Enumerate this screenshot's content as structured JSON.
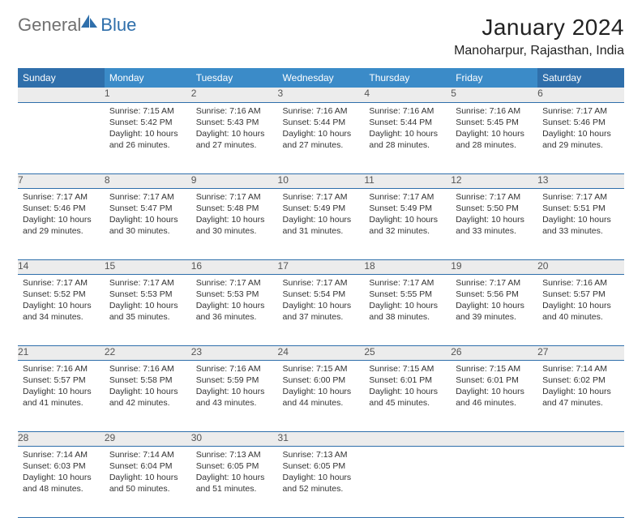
{
  "brand": {
    "part1": "General",
    "part2": "Blue",
    "logo_color": "#2f6fab"
  },
  "title": "January 2024",
  "location": "Manoharpur, Rajasthan, India",
  "colors": {
    "weekday_header_bg": "#3b8bc8",
    "weekend_header_bg": "#2f6fab",
    "header_text": "#ffffff",
    "daynum_bg": "#ececec",
    "rule": "#2f6fab",
    "text": "#333333"
  },
  "day_headers": [
    "Sunday",
    "Monday",
    "Tuesday",
    "Wednesday",
    "Thursday",
    "Friday",
    "Saturday"
  ],
  "weeks": [
    {
      "cells": [
        {
          "num": "",
          "sunrise": "",
          "sunset": "",
          "daylight": ""
        },
        {
          "num": "1",
          "sunrise": "Sunrise: 7:15 AM",
          "sunset": "Sunset: 5:42 PM",
          "daylight": "Daylight: 10 hours and 26 minutes."
        },
        {
          "num": "2",
          "sunrise": "Sunrise: 7:16 AM",
          "sunset": "Sunset: 5:43 PM",
          "daylight": "Daylight: 10 hours and 27 minutes."
        },
        {
          "num": "3",
          "sunrise": "Sunrise: 7:16 AM",
          "sunset": "Sunset: 5:44 PM",
          "daylight": "Daylight: 10 hours and 27 minutes."
        },
        {
          "num": "4",
          "sunrise": "Sunrise: 7:16 AM",
          "sunset": "Sunset: 5:44 PM",
          "daylight": "Daylight: 10 hours and 28 minutes."
        },
        {
          "num": "5",
          "sunrise": "Sunrise: 7:16 AM",
          "sunset": "Sunset: 5:45 PM",
          "daylight": "Daylight: 10 hours and 28 minutes."
        },
        {
          "num": "6",
          "sunrise": "Sunrise: 7:17 AM",
          "sunset": "Sunset: 5:46 PM",
          "daylight": "Daylight: 10 hours and 29 minutes."
        }
      ]
    },
    {
      "cells": [
        {
          "num": "7",
          "sunrise": "Sunrise: 7:17 AM",
          "sunset": "Sunset: 5:46 PM",
          "daylight": "Daylight: 10 hours and 29 minutes."
        },
        {
          "num": "8",
          "sunrise": "Sunrise: 7:17 AM",
          "sunset": "Sunset: 5:47 PM",
          "daylight": "Daylight: 10 hours and 30 minutes."
        },
        {
          "num": "9",
          "sunrise": "Sunrise: 7:17 AM",
          "sunset": "Sunset: 5:48 PM",
          "daylight": "Daylight: 10 hours and 30 minutes."
        },
        {
          "num": "10",
          "sunrise": "Sunrise: 7:17 AM",
          "sunset": "Sunset: 5:49 PM",
          "daylight": "Daylight: 10 hours and 31 minutes."
        },
        {
          "num": "11",
          "sunrise": "Sunrise: 7:17 AM",
          "sunset": "Sunset: 5:49 PM",
          "daylight": "Daylight: 10 hours and 32 minutes."
        },
        {
          "num": "12",
          "sunrise": "Sunrise: 7:17 AM",
          "sunset": "Sunset: 5:50 PM",
          "daylight": "Daylight: 10 hours and 33 minutes."
        },
        {
          "num": "13",
          "sunrise": "Sunrise: 7:17 AM",
          "sunset": "Sunset: 5:51 PM",
          "daylight": "Daylight: 10 hours and 33 minutes."
        }
      ]
    },
    {
      "cells": [
        {
          "num": "14",
          "sunrise": "Sunrise: 7:17 AM",
          "sunset": "Sunset: 5:52 PM",
          "daylight": "Daylight: 10 hours and 34 minutes."
        },
        {
          "num": "15",
          "sunrise": "Sunrise: 7:17 AM",
          "sunset": "Sunset: 5:53 PM",
          "daylight": "Daylight: 10 hours and 35 minutes."
        },
        {
          "num": "16",
          "sunrise": "Sunrise: 7:17 AM",
          "sunset": "Sunset: 5:53 PM",
          "daylight": "Daylight: 10 hours and 36 minutes."
        },
        {
          "num": "17",
          "sunrise": "Sunrise: 7:17 AM",
          "sunset": "Sunset: 5:54 PM",
          "daylight": "Daylight: 10 hours and 37 minutes."
        },
        {
          "num": "18",
          "sunrise": "Sunrise: 7:17 AM",
          "sunset": "Sunset: 5:55 PM",
          "daylight": "Daylight: 10 hours and 38 minutes."
        },
        {
          "num": "19",
          "sunrise": "Sunrise: 7:17 AM",
          "sunset": "Sunset: 5:56 PM",
          "daylight": "Daylight: 10 hours and 39 minutes."
        },
        {
          "num": "20",
          "sunrise": "Sunrise: 7:16 AM",
          "sunset": "Sunset: 5:57 PM",
          "daylight": "Daylight: 10 hours and 40 minutes."
        }
      ]
    },
    {
      "cells": [
        {
          "num": "21",
          "sunrise": "Sunrise: 7:16 AM",
          "sunset": "Sunset: 5:57 PM",
          "daylight": "Daylight: 10 hours and 41 minutes."
        },
        {
          "num": "22",
          "sunrise": "Sunrise: 7:16 AM",
          "sunset": "Sunset: 5:58 PM",
          "daylight": "Daylight: 10 hours and 42 minutes."
        },
        {
          "num": "23",
          "sunrise": "Sunrise: 7:16 AM",
          "sunset": "Sunset: 5:59 PM",
          "daylight": "Daylight: 10 hours and 43 minutes."
        },
        {
          "num": "24",
          "sunrise": "Sunrise: 7:15 AM",
          "sunset": "Sunset: 6:00 PM",
          "daylight": "Daylight: 10 hours and 44 minutes."
        },
        {
          "num": "25",
          "sunrise": "Sunrise: 7:15 AM",
          "sunset": "Sunset: 6:01 PM",
          "daylight": "Daylight: 10 hours and 45 minutes."
        },
        {
          "num": "26",
          "sunrise": "Sunrise: 7:15 AM",
          "sunset": "Sunset: 6:01 PM",
          "daylight": "Daylight: 10 hours and 46 minutes."
        },
        {
          "num": "27",
          "sunrise": "Sunrise: 7:14 AM",
          "sunset": "Sunset: 6:02 PM",
          "daylight": "Daylight: 10 hours and 47 minutes."
        }
      ]
    },
    {
      "cells": [
        {
          "num": "28",
          "sunrise": "Sunrise: 7:14 AM",
          "sunset": "Sunset: 6:03 PM",
          "daylight": "Daylight: 10 hours and 48 minutes."
        },
        {
          "num": "29",
          "sunrise": "Sunrise: 7:14 AM",
          "sunset": "Sunset: 6:04 PM",
          "daylight": "Daylight: 10 hours and 50 minutes."
        },
        {
          "num": "30",
          "sunrise": "Sunrise: 7:13 AM",
          "sunset": "Sunset: 6:05 PM",
          "daylight": "Daylight: 10 hours and 51 minutes."
        },
        {
          "num": "31",
          "sunrise": "Sunrise: 7:13 AM",
          "sunset": "Sunset: 6:05 PM",
          "daylight": "Daylight: 10 hours and 52 minutes."
        },
        {
          "num": "",
          "sunrise": "",
          "sunset": "",
          "daylight": ""
        },
        {
          "num": "",
          "sunrise": "",
          "sunset": "",
          "daylight": ""
        },
        {
          "num": "",
          "sunrise": "",
          "sunset": "",
          "daylight": ""
        }
      ]
    }
  ]
}
